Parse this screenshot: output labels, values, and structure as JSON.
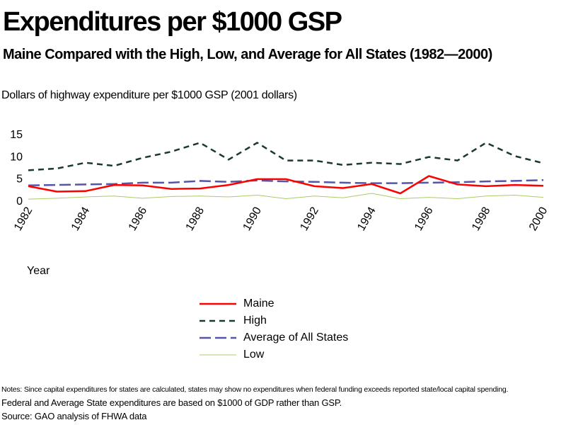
{
  "title": "Expenditures per $1000 GSP",
  "subtitle": "Maine Compared with the High, Low, and Average for All States (1982—2000)",
  "notes": [
    "Notes: Since capital expenditures for states are calculated, states may show no expenditures when federal funding exceeds reported state/local capital spending.",
    "Federal and Average State expenditures are based on $1000 of GDP rather than GSP.",
    "Source: GAO  analysis of FHWA data"
  ],
  "chart_data": {
    "type": "line",
    "ylabel": "Dollars of highway expenditure per $1000 GSP  (2001 dollars)",
    "xlabel": "Year",
    "x": [
      1982,
      1983,
      1984,
      1985,
      1986,
      1987,
      1988,
      1989,
      1990,
      1991,
      1992,
      1993,
      1994,
      1995,
      1996,
      1997,
      1998,
      1999,
      2000
    ],
    "xticks": [
      "1982",
      "1984",
      "1986",
      "1988",
      "1990",
      "1992",
      "1994",
      "1996",
      "1998",
      "2000"
    ],
    "yticks": [
      "0",
      "5",
      "10",
      "15"
    ],
    "ylim": [
      0,
      15
    ],
    "grid": false,
    "legend_position": "bottom",
    "series": [
      {
        "name": "Maine",
        "color": "#ff0000",
        "style": "solid",
        "values": [
          3.2,
          2.0,
          2.1,
          3.5,
          3.4,
          2.6,
          2.7,
          3.5,
          4.8,
          4.8,
          3.2,
          2.8,
          3.7,
          1.6,
          5.5,
          3.6,
          3.2,
          3.5,
          3.3
        ]
      },
      {
        "name": "High",
        "color": "#1a3a2a",
        "style": "dashed",
        "values": [
          6.8,
          7.2,
          8.5,
          7.8,
          9.6,
          11.0,
          13.0,
          9.2,
          13.0,
          9.0,
          9.0,
          8.0,
          8.5,
          8.2,
          9.8,
          9.0,
          13.0,
          10.0,
          8.4
        ]
      },
      {
        "name": "Average of All States",
        "color": "#5555aa",
        "style": "longdash",
        "values": [
          3.4,
          3.5,
          3.6,
          3.7,
          4.0,
          4.0,
          4.4,
          4.2,
          4.5,
          4.3,
          4.2,
          4.0,
          3.9,
          3.9,
          4.0,
          4.1,
          4.3,
          4.4,
          4.6
        ]
      },
      {
        "name": "Low",
        "color": "#aacc66",
        "style": "solid",
        "values": [
          0.3,
          0.5,
          0.8,
          1.0,
          0.5,
          0.9,
          1.0,
          0.8,
          1.2,
          0.4,
          1.0,
          0.6,
          1.6,
          0.4,
          0.7,
          0.4,
          1.0,
          1.2,
          0.7
        ]
      }
    ]
  }
}
